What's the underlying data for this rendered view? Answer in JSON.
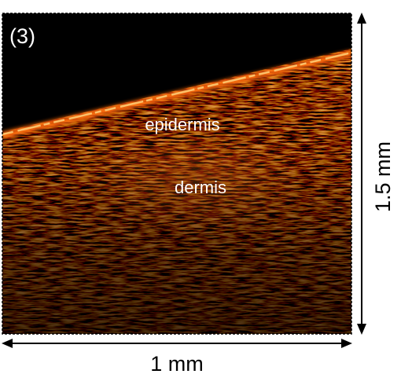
{
  "labels": {
    "panel": "(3)",
    "epidermis": "epidermis",
    "dermis": "dermis"
  },
  "scale": {
    "vertical": "1.5 mm",
    "horizontal": "1 mm"
  }
}
